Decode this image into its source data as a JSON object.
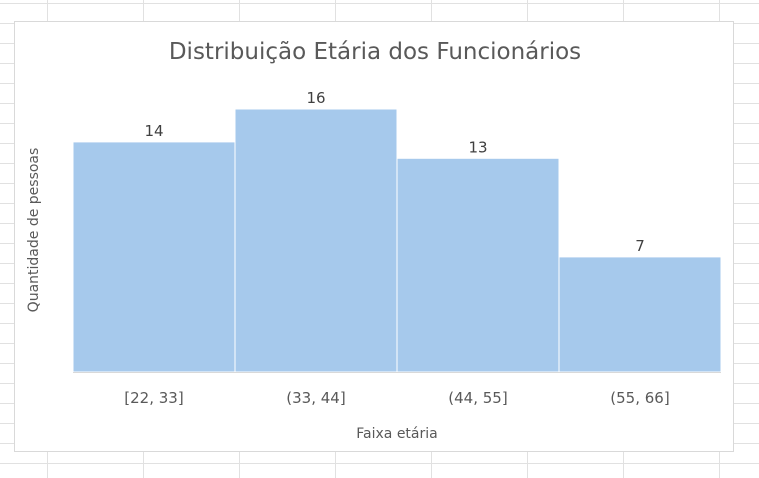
{
  "chart_data": {
    "type": "bar",
    "title": "Distribuição Etária dos Funcionários",
    "xlabel": "Faixa etária",
    "ylabel": "Quantidade de pessoas",
    "categories": [
      "[22, 33]",
      "(33, 44]",
      "(44, 55]",
      "(55, 66]"
    ],
    "values": [
      14,
      16,
      13,
      7
    ],
    "data_labels": [
      "14",
      "16",
      "13",
      "7"
    ],
    "ylim": [
      0,
      16
    ],
    "grid": false,
    "legend": "none",
    "bar_color": "#a6c9ec",
    "axis_color": "#d9d9d9"
  }
}
